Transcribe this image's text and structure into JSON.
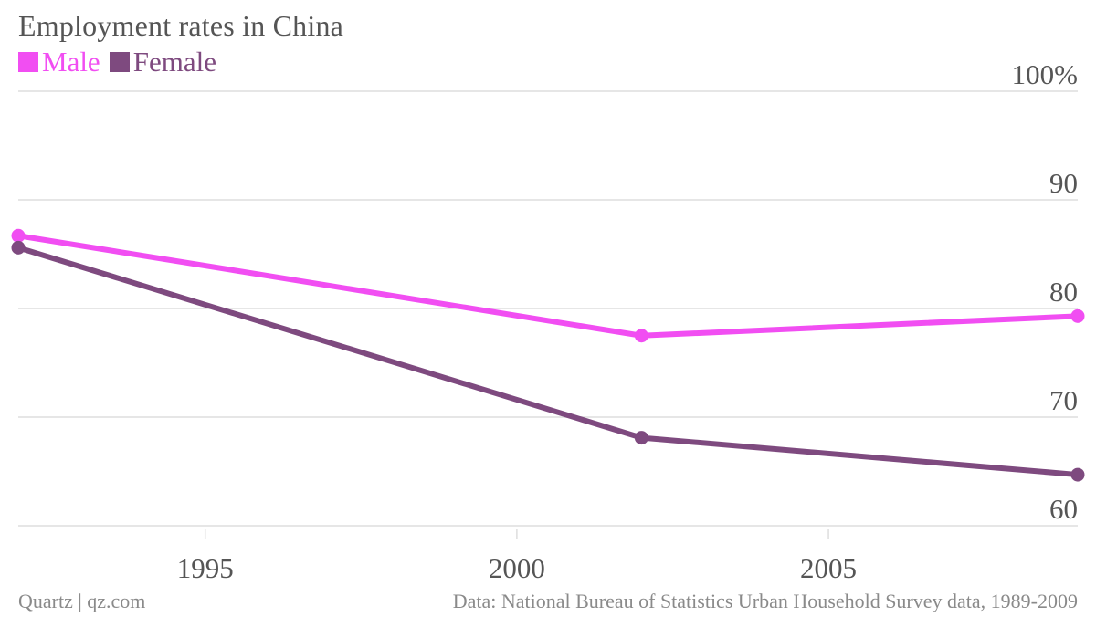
{
  "chart_data": {
    "type": "line",
    "title": "Employment rates in China",
    "x": [
      1992,
      2002,
      2009
    ],
    "xlim": [
      1992,
      2009
    ],
    "ylim": [
      60,
      100
    ],
    "xticks": [
      1995,
      2000,
      2005
    ],
    "xtick_labels": [
      "1995",
      "2000",
      "2005"
    ],
    "yticks": [
      60,
      70,
      80,
      90,
      100
    ],
    "ytick_labels": [
      "60",
      "70",
      "80",
      "90",
      "100%"
    ],
    "grid": true,
    "legend_position": "top-left",
    "series": [
      {
        "name": "Male",
        "color": "#f14ef2",
        "values": [
          86.7,
          77.5,
          79.3
        ]
      },
      {
        "name": "Female",
        "color": "#7e4a7f",
        "values": [
          85.6,
          68.1,
          64.7
        ]
      }
    ]
  },
  "footer": {
    "source_left": "Quartz | qz.com",
    "source_right": "Data: National Bureau of Statistics Urban Household Survey data, 1989-2009"
  },
  "colors": {
    "grid": "#dddddd",
    "tick_text": "#555555",
    "footer_text": "#8a8a8a"
  }
}
